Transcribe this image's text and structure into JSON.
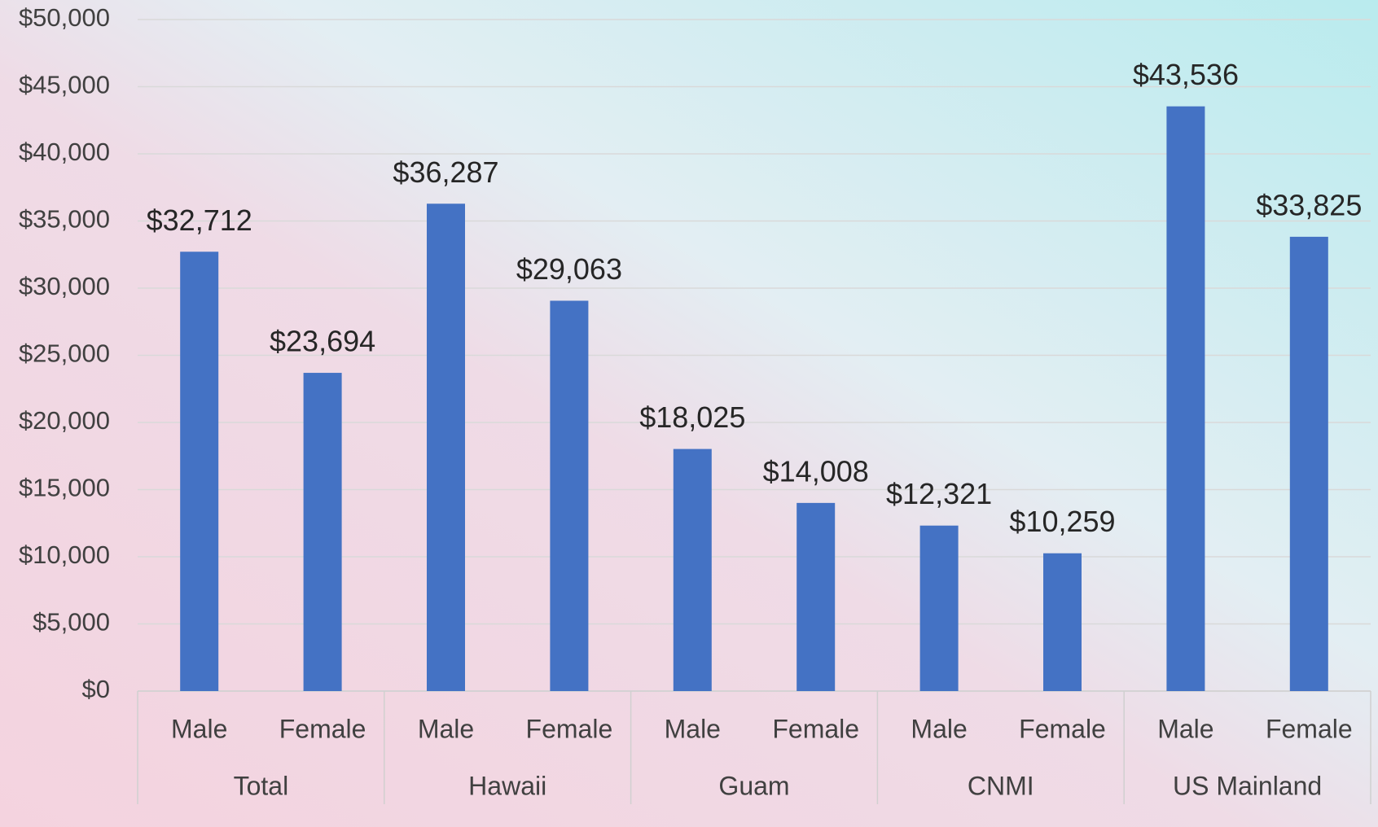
{
  "chart_data": {
    "type": "bar",
    "categories": [
      "Male",
      "Female",
      "Male",
      "Female",
      "Male",
      "Female",
      "Male",
      "Female",
      "Male",
      "Female"
    ],
    "groups": [
      "Total",
      "Hawaii",
      "Guam",
      "CNMI",
      "US Mainland"
    ],
    "values": [
      32712,
      23694,
      36287,
      29063,
      18025,
      14008,
      12321,
      10259,
      43536,
      33825
    ],
    "value_labels": [
      "$32,712",
      "$23,694",
      "$36,287",
      "$29,063",
      "$18,025",
      "$14,008",
      "$12,321",
      "$10,259",
      "$43,536",
      "$33,825"
    ],
    "color": "#4472c4",
    "ylim": [
      0,
      50000
    ],
    "yticks": [
      {
        "value": 0,
        "label": "$0"
      },
      {
        "value": 5000,
        "label": "$5,000"
      },
      {
        "value": 10000,
        "label": "$10,000"
      },
      {
        "value": 15000,
        "label": "$15,000"
      },
      {
        "value": 20000,
        "label": "$20,000"
      },
      {
        "value": 25000,
        "label": "$25,000"
      },
      {
        "value": 30000,
        "label": "$30,000"
      },
      {
        "value": 35000,
        "label": "$35,000"
      },
      {
        "value": 40000,
        "label": "$40,000"
      },
      {
        "value": 45000,
        "label": "$45,000"
      },
      {
        "value": 50000,
        "label": "$50,000"
      }
    ],
    "grid": true
  }
}
